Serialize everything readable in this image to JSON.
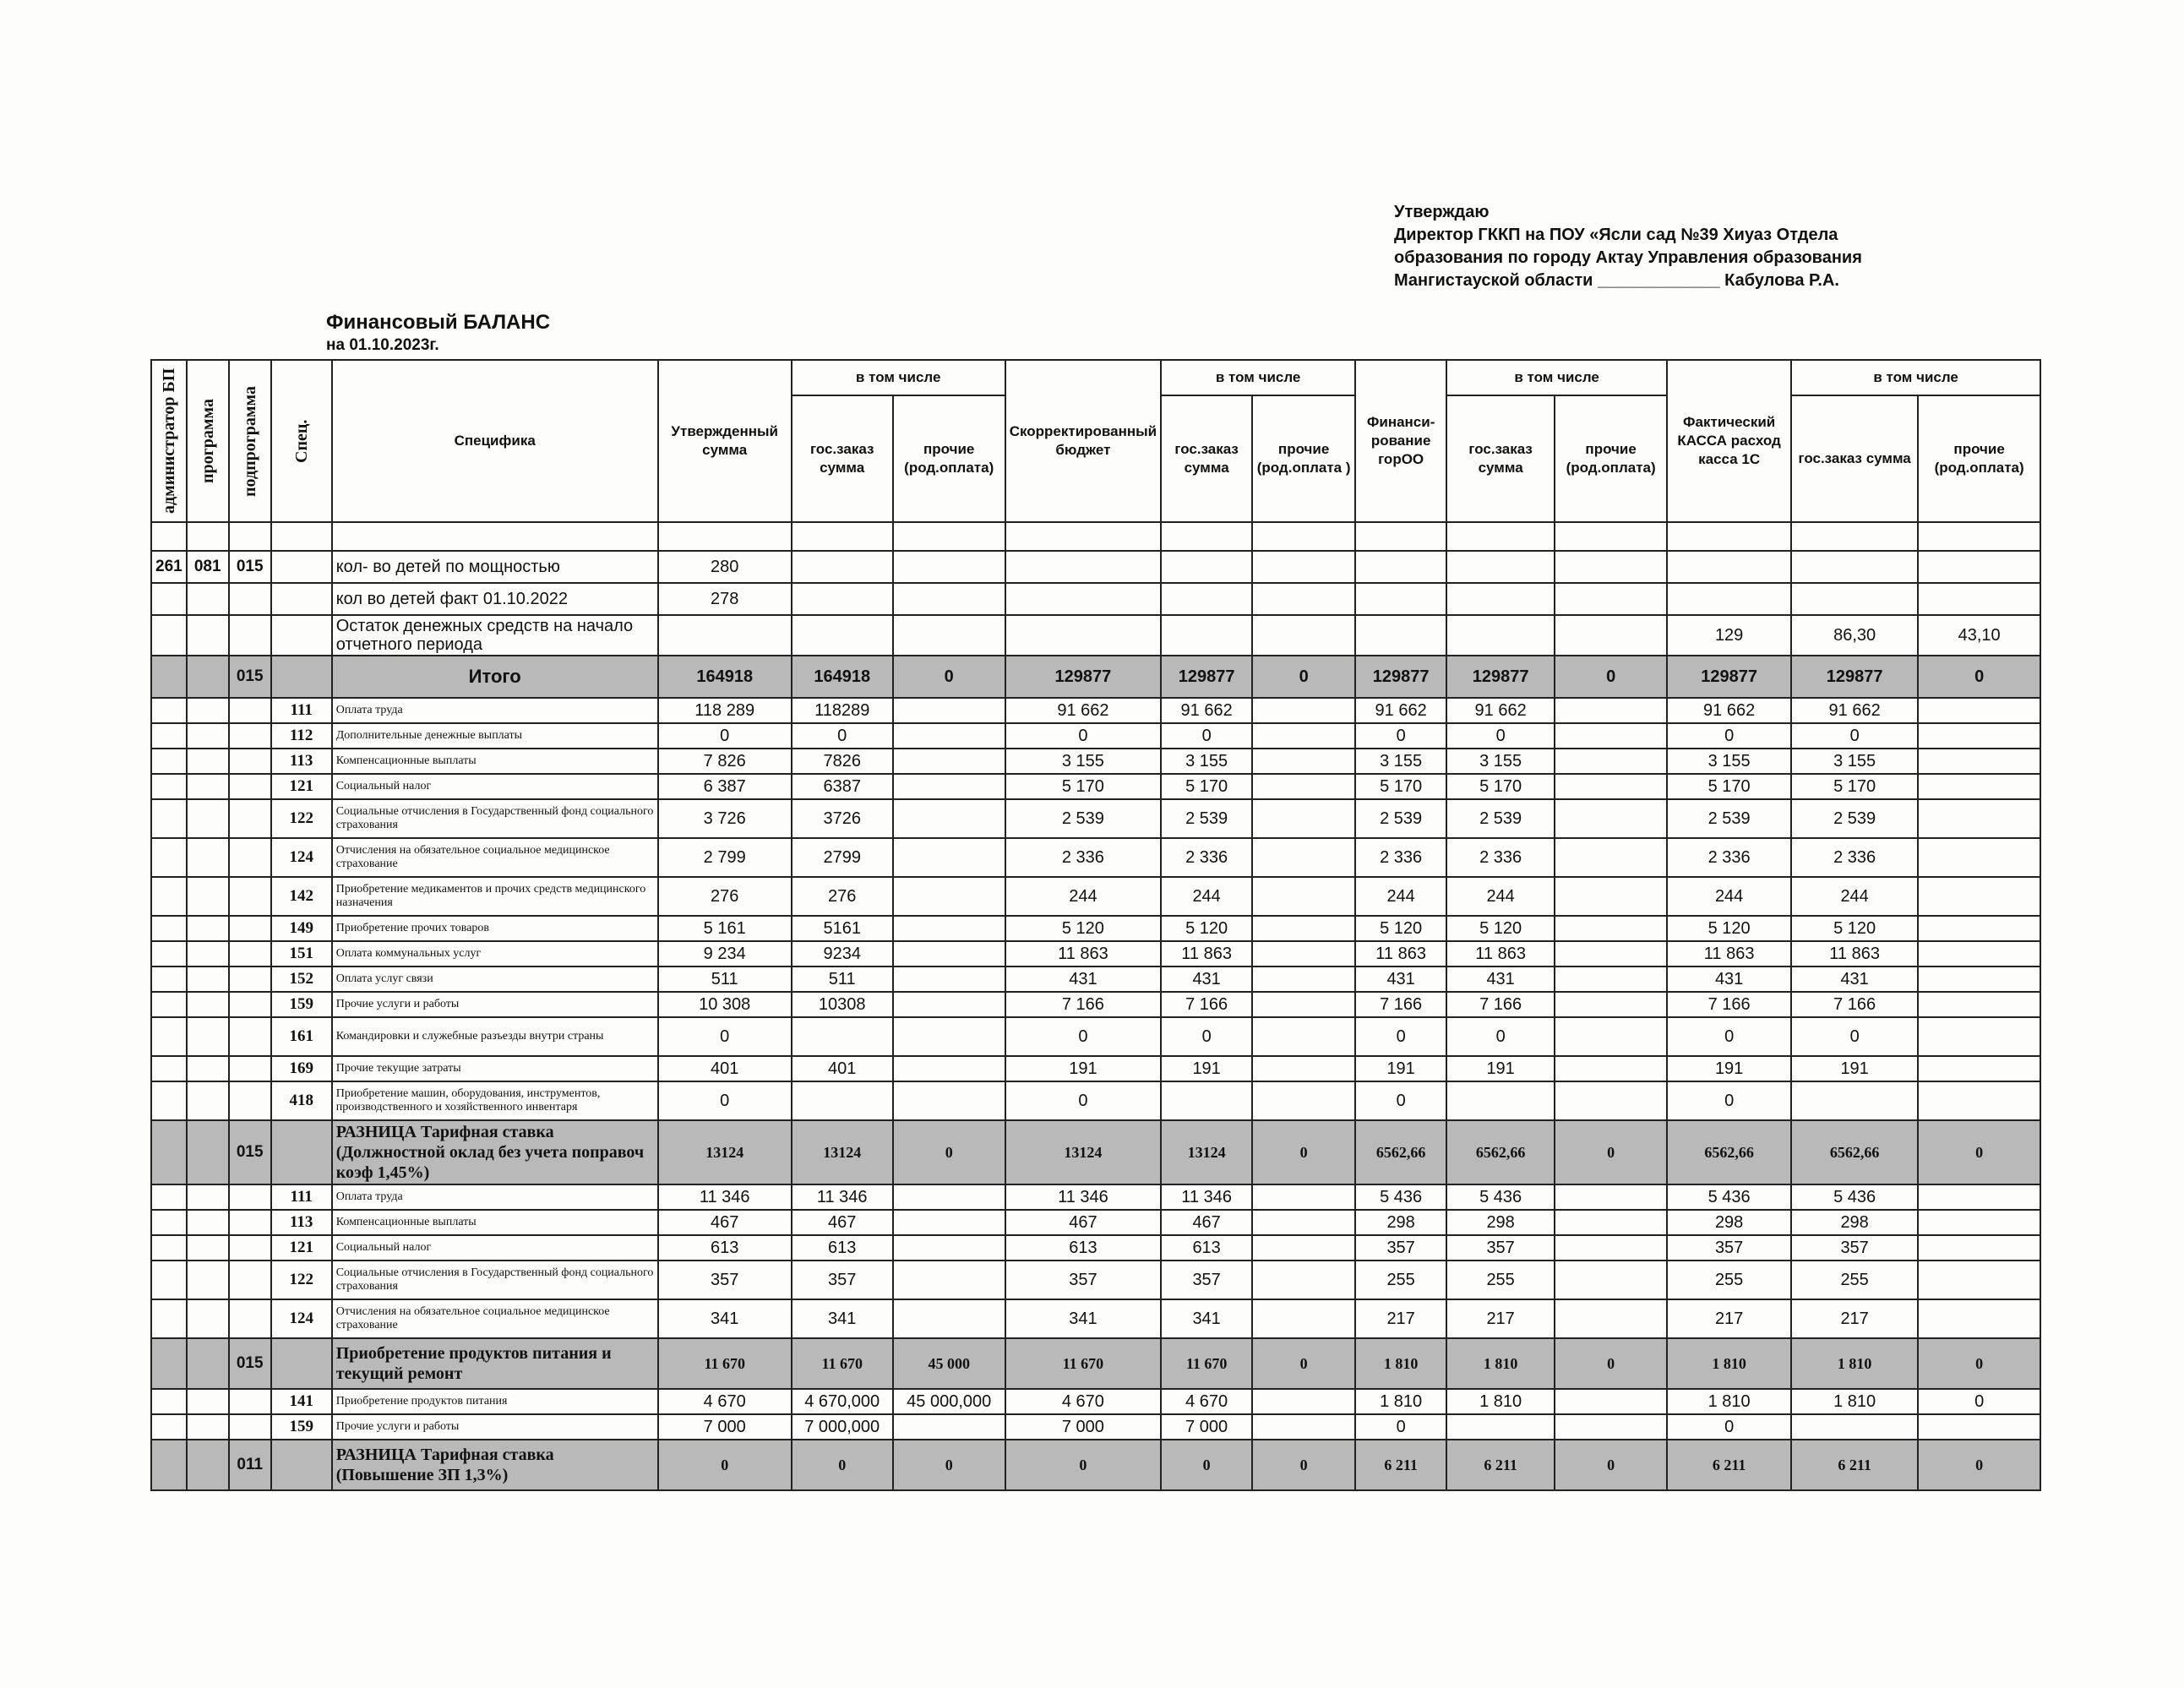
{
  "approval": {
    "lines": [
      "Утверждаю",
      "Директор ГККП на ПОУ «Ясли сад №39 Хиуаз Отдела",
      "образования по городу  Актау Управления образования",
      "Мангистауской области _____________ Кабулова Р.А."
    ]
  },
  "title": "Финансовый  БАЛАНС",
  "date": "на 01.10.2023г.",
  "table": {
    "header_top": [
      "администратор БП",
      "программа",
      "подпрограмма",
      "Спец.",
      "Специфика",
      "Утвержденный сумма",
      "в том числе",
      "Скорректированный бюджет",
      "в том числе",
      "Финанси-рование горОО",
      "в том числе",
      "Фактический КАССА расход касса 1С",
      "в том числе"
    ],
    "header_sub": [
      "гос.заказ сумма",
      "прочие (род.оплата)",
      "гос.заказ сумма",
      "прочие (род.оплата )",
      "гос.заказ сумма",
      "прочие (род.оплата)",
      "гос.заказ сумма",
      "прочие (род.оплата)"
    ],
    "rows": [
      {
        "cells": [
          "261",
          "081",
          "015",
          null,
          "кол- во детей по мощностью",
          "280",
          null,
          null,
          null,
          null,
          null,
          null,
          null,
          null,
          null,
          null,
          null
        ]
      },
      {
        "cells": [
          null,
          null,
          null,
          null,
          "кол во детей факт 01.10.2022",
          "278",
          null,
          null,
          null,
          null,
          null,
          null,
          null,
          null,
          null,
          null,
          null
        ]
      },
      {
        "cells": [
          null,
          null,
          null,
          null,
          "Остаток денежных средств на начало отчетного периода",
          null,
          null,
          null,
          null,
          null,
          null,
          null,
          null,
          null,
          "129",
          "86,30",
          "43,10"
        ]
      },
      {
        "shaded": true,
        "cells": [
          null,
          null,
          "015",
          null,
          "Итого",
          "164918",
          "164918",
          "0",
          "129877",
          "129877",
          "0",
          "129877",
          "129877",
          "0",
          "129877",
          "129877",
          "0"
        ]
      },
      {
        "cells": [
          null,
          null,
          null,
          "111",
          "Оплата труда",
          "118 289",
          "118289",
          null,
          "91 662",
          "91 662",
          null,
          "91 662",
          "91 662",
          null,
          "91 662",
          "91 662",
          null
        ]
      },
      {
        "cells": [
          null,
          null,
          null,
          "112",
          "Дополнительные денежные выплаты",
          "0",
          "0",
          null,
          "0",
          "0",
          null,
          "0",
          "0",
          null,
          "0",
          "0",
          null
        ]
      },
      {
        "cells": [
          null,
          null,
          null,
          "113",
          "Компенсационные выплаты",
          "7 826",
          "7826",
          null,
          "3 155",
          "3 155",
          null,
          "3 155",
          "3 155",
          null,
          "3 155",
          "3 155",
          null
        ]
      },
      {
        "cells": [
          null,
          null,
          null,
          "121",
          "Социальный налог",
          "6 387",
          "6387",
          null,
          "5 170",
          "5 170",
          null,
          "5 170",
          "5 170",
          null,
          "5 170",
          "5 170",
          null
        ]
      },
      {
        "cells": [
          null,
          null,
          null,
          "122",
          "Социальные отчисления в Государственный фонд социального страхования",
          "3 726",
          "3726",
          null,
          "2 539",
          "2 539",
          null,
          "2 539",
          "2 539",
          null,
          "2 539",
          "2 539",
          null
        ]
      },
      {
        "cells": [
          null,
          null,
          null,
          "124",
          "Отчисления на обязательное социальное медицинское страхование",
          "2 799",
          "2799",
          null,
          "2 336",
          "2 336",
          null,
          "2 336",
          "2 336",
          null,
          "2 336",
          "2 336",
          null
        ]
      },
      {
        "cells": [
          null,
          null,
          null,
          "142",
          "Приобретение медикаментов и прочих средств медицинского назначения",
          "276",
          "276",
          null,
          "244",
          "244",
          null,
          "244",
          "244",
          null,
          "244",
          "244",
          null
        ]
      },
      {
        "cells": [
          null,
          null,
          null,
          "149",
          "Приобретение прочих товаров",
          "5 161",
          "5161",
          null,
          "5 120",
          "5 120",
          null,
          "5 120",
          "5 120",
          null,
          "5 120",
          "5 120",
          null
        ]
      },
      {
        "cells": [
          null,
          null,
          null,
          "151",
          "Оплата коммунальных услуг",
          "9 234",
          "9234",
          null,
          "11 863",
          "11 863",
          null,
          "11 863",
          "11 863",
          null,
          "11 863",
          "11 863",
          null
        ]
      },
      {
        "cells": [
          null,
          null,
          null,
          "152",
          "Оплата услуг связи",
          "511",
          "511",
          null,
          "431",
          "431",
          null,
          "431",
          "431",
          null,
          "431",
          "431",
          null
        ]
      },
      {
        "cells": [
          null,
          null,
          null,
          "159",
          "Прочие услуги и работы",
          "10 308",
          "10308",
          null,
          "7 166",
          "7 166",
          null,
          "7 166",
          "7 166",
          null,
          "7 166",
          "7 166",
          null
        ]
      },
      {
        "cells": [
          null,
          null,
          null,
          "161",
          "Командировки и служебные разъезды внутри страны",
          "0",
          null,
          null,
          "0",
          "0",
          null,
          "0",
          "0",
          null,
          "0",
          "0",
          null
        ]
      },
      {
        "cells": [
          null,
          null,
          null,
          "169",
          "Прочие текущие затраты",
          "401",
          "401",
          null,
          "191",
          "191",
          null,
          "191",
          "191",
          null,
          "191",
          "191",
          null
        ]
      },
      {
        "cells": [
          null,
          null,
          null,
          "418",
          "Приобретение машин, оборудования, инструментов, производственного и хозяйственного инвентаря",
          "0",
          null,
          null,
          "0",
          null,
          null,
          "0",
          null,
          null,
          "0",
          null,
          null
        ]
      },
      {
        "shaded": true,
        "serif": true,
        "cells": [
          null,
          null,
          "015",
          null,
          "РАЗНИЦА Тарифная ставка (Должностной оклад без учета поправоч коэф 1,45%)",
          "13124",
          "13124",
          "0",
          "13124",
          "13124",
          "0",
          "6562,66",
          "6562,66",
          "0",
          "6562,66",
          "6562,66",
          "0"
        ]
      },
      {
        "cells": [
          null,
          null,
          null,
          "111",
          "Оплата труда",
          "11 346",
          "11 346",
          null,
          "11 346",
          "11 346",
          null,
          "5 436",
          "5 436",
          null,
          "5 436",
          "5 436",
          null
        ]
      },
      {
        "cells": [
          null,
          null,
          null,
          "113",
          "Компенсационные выплаты",
          "467",
          "467",
          null,
          "467",
          "467",
          null,
          "298",
          "298",
          null,
          "298",
          "298",
          null
        ]
      },
      {
        "cells": [
          null,
          null,
          null,
          "121",
          "Социальный налог",
          "613",
          "613",
          null,
          "613",
          "613",
          null,
          "357",
          "357",
          null,
          "357",
          "357",
          null
        ]
      },
      {
        "cells": [
          null,
          null,
          null,
          "122",
          "Социальные отчисления в Государственный фонд социального страхования",
          "357",
          "357",
          null,
          "357",
          "357",
          null,
          "255",
          "255",
          null,
          "255",
          "255",
          null
        ]
      },
      {
        "cells": [
          null,
          null,
          null,
          "124",
          "Отчисления на обязательное социальное медицинское страхование",
          "341",
          "341",
          null,
          "341",
          "341",
          null,
          "217",
          "217",
          null,
          "217",
          "217",
          null
        ]
      },
      {
        "shaded": true,
        "serif": true,
        "cells": [
          null,
          null,
          "015",
          null,
          "Приобретение продуктов питания и текущий ремонт",
          "11 670",
          "11 670",
          "45 000",
          "11 670",
          "11 670",
          "0",
          "1 810",
          "1 810",
          "0",
          "1 810",
          "1 810",
          "0"
        ]
      },
      {
        "cells": [
          null,
          null,
          null,
          "141",
          "Приобретение продуктов питания",
          "4 670",
          "4 670,000",
          "45 000,000",
          "4 670",
          "4 670",
          null,
          "1 810",
          "1 810",
          null,
          "1 810",
          "1 810",
          "0"
        ]
      },
      {
        "cells": [
          null,
          null,
          null,
          "159",
          "Прочие услуги и работы",
          "7 000",
          "7 000,000",
          null,
          "7 000",
          "7 000",
          null,
          "0",
          null,
          null,
          "0",
          null,
          null
        ]
      },
      {
        "shaded": true,
        "serif": true,
        "cells": [
          null,
          null,
          "011",
          null,
          "РАЗНИЦА Тарифная ставка (Повышение ЗП 1,3%)",
          "0",
          "0",
          "0",
          "0",
          "0",
          "0",
          "6 211",
          "6 211",
          "0",
          "6 211",
          "6 211",
          "0"
        ]
      }
    ]
  }
}
